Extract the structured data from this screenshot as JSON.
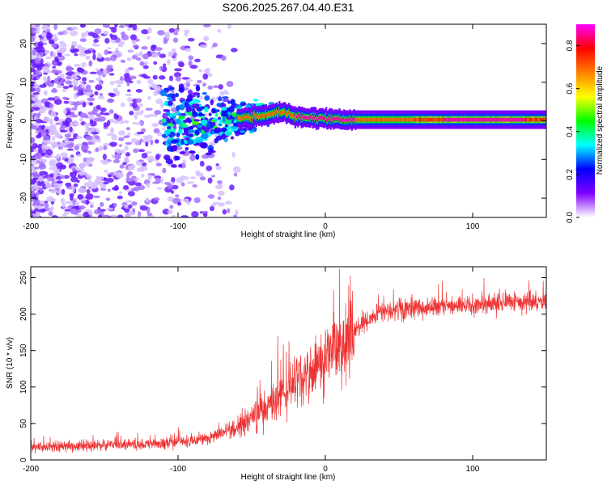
{
  "page": {
    "title": "S206.2025.267.04.40.E31"
  },
  "chart_data": [
    {
      "type": "heatmap",
      "title": "S206.2025.267.04.40.E31",
      "xlabel": "Height of straight line (km)",
      "ylabel": "Frequency (Hz)",
      "xlim": [
        -200,
        150
      ],
      "ylim": [
        -25,
        25
      ],
      "x_ticks": [
        -200,
        -100,
        0,
        100
      ],
      "y_ticks": [
        -20,
        -10,
        0,
        10,
        20
      ],
      "colorbar": {
        "label": "Normalized spectral amplitude",
        "range": [
          0.0,
          0.9
        ],
        "ticks": [
          "0.0",
          "0.2",
          "0.4",
          "0.6",
          "0.8"
        ],
        "colors": [
          "#ffffff",
          "#8000ff",
          "#0000ff",
          "#00ffff",
          "#00ff00",
          "#ffff00",
          "#ff8000",
          "#ff0000",
          "#ff00ff"
        ]
      },
      "band_centers": [
        {
          "x": -100,
          "f": 0.0
        },
        {
          "x": -80,
          "f": -0.5
        },
        {
          "x": -60,
          "f": 0.5
        },
        {
          "x": -40,
          "f": 1.5
        },
        {
          "x": -30,
          "f": 2.5
        },
        {
          "x": -20,
          "f": 1.0
        },
        {
          "x": 0,
          "f": 0.5
        },
        {
          "x": 20,
          "f": 0.3
        },
        {
          "x": 150,
          "f": 0.3
        }
      ]
    },
    {
      "type": "line",
      "xlabel": "Height of straight line (km)",
      "ylabel": "SNR (10 * v/v)",
      "xlim": [
        -200,
        150
      ],
      "ylim": [
        0,
        265
      ],
      "x_ticks": [
        -200,
        -100,
        0,
        100
      ],
      "y_ticks": [
        0,
        50,
        100,
        150,
        200,
        250
      ],
      "series": [
        {
          "name": "SNR",
          "color": "#ee3333",
          "trend": [
            {
              "x": -200,
              "y": 18
            },
            {
              "x": -150,
              "y": 20
            },
            {
              "x": -110,
              "y": 22
            },
            {
              "x": -80,
              "y": 30
            },
            {
              "x": -60,
              "y": 45
            },
            {
              "x": -40,
              "y": 70
            },
            {
              "x": -20,
              "y": 105
            },
            {
              "x": 0,
              "y": 140
            },
            {
              "x": 20,
              "y": 180
            },
            {
              "x": 40,
              "y": 205
            },
            {
              "x": 80,
              "y": 210
            },
            {
              "x": 120,
              "y": 215
            },
            {
              "x": 150,
              "y": 218
            }
          ]
        }
      ]
    }
  ]
}
